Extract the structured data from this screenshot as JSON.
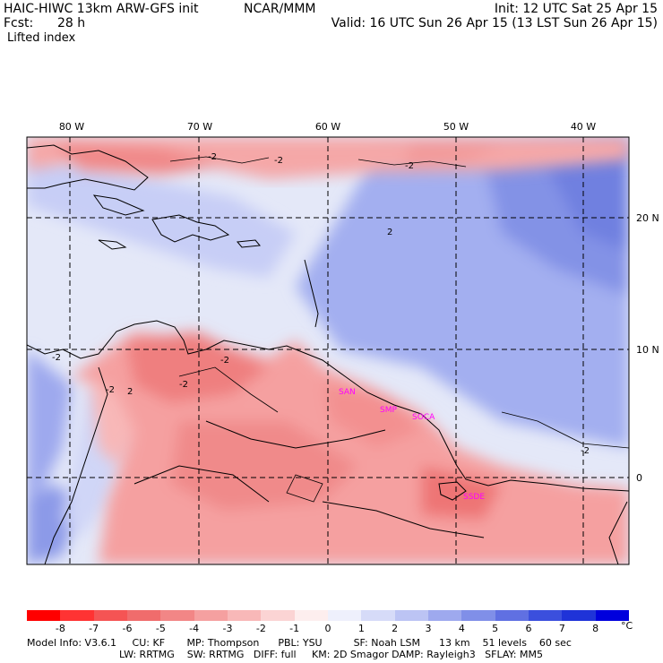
{
  "header": {
    "model_title": "HAIC-HIWC 13km ARW-GFS init",
    "source": "NCAR/MMM",
    "init": "Init: 12 UTC Sat 25 Apr 15",
    "forecast_label": "Fcst:",
    "forecast_value": "28 h",
    "valid": "Valid: 16 UTC Sun 26 Apr 15 (13 LST Sun 26 Apr 15)",
    "field": "Lifted index"
  },
  "map": {
    "lon_labels": [
      "80 W",
      "70 W",
      "60 W",
      "50 W",
      "40 W"
    ],
    "lat_labels": [
      "20 N",
      "10 N",
      "0"
    ],
    "contour_labels": [
      "-2",
      "-2",
      "-2",
      "-2",
      "-2",
      "-2",
      "-2",
      "-2",
      "2",
      "2"
    ],
    "stations": [
      "SAN",
      "SMP",
      "SOCA",
      "SSDE"
    ],
    "colors": {
      "ocean": "#e4e8f8",
      "atlantic_high": "#7e8ee4",
      "atlantic_mid": "#a3aff0",
      "land_warm": "#f59c9c",
      "land_hot": "#ef7373",
      "caribbean": "#c9d0f6",
      "pacific": "#8c9ae8",
      "coast": "#000000",
      "station": "#ff00ff"
    }
  },
  "colorbar": {
    "labels": [
      "-8",
      "-7",
      "-6",
      "-5",
      "-4",
      "-3",
      "-2",
      "-1",
      "0",
      "1",
      "2",
      "3",
      "4",
      "5",
      "6",
      "7",
      "8"
    ],
    "unit": "°C",
    "colors": [
      "#ff0000",
      "#ff3333",
      "#f55454",
      "#f06c6c",
      "#f28686",
      "#f5a0a0",
      "#f8b8b8",
      "#fbd4d4",
      "#fdeeee",
      "#eef0fc",
      "#d6dbf8",
      "#bcc4f4",
      "#9ea9ee",
      "#808fe8",
      "#6070e2",
      "#3b4fdd",
      "#1f33d8",
      "#0000dd"
    ]
  },
  "footer": {
    "line1": "Model Info: V3.6.1     CU: KF       MP: Thompson      PBL: YSU          SF: Noah LSM      13 km    51 levels    60 sec",
    "line2": "LW: RRTMG    SW: RRTMG   DIFF: full     KM: 2D Smagor DAMP: Rayleigh3   SFLAY: MM5"
  }
}
